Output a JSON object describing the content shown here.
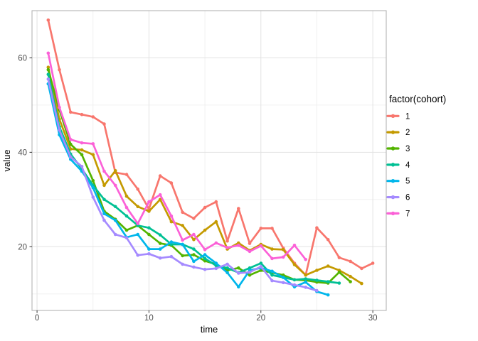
{
  "figure": {
    "background": "#ffffff",
    "panel_border_color": "#acacac",
    "grid_major_color": "#e2e2e2",
    "grid_minor_color": "#f0f0f0",
    "tick_mark_color": "#333333",
    "tick_label_color": "#4d4d4d"
  },
  "chart_data": {
    "type": "line",
    "title": "",
    "xlabel": "time",
    "ylabel": "value",
    "legend_title": "factor(cohort)",
    "legend_position": "right",
    "grid": "on",
    "x_ticks": [
      0,
      10,
      20,
      30
    ],
    "x_minor_ticks": [
      5,
      15,
      25
    ],
    "y_ticks": [
      20,
      40,
      60
    ],
    "y_minor_ticks": [
      10,
      30,
      50
    ],
    "xlim": [
      -0.45,
      31.2
    ],
    "ylim": [
      6.5,
      70
    ],
    "x_step": 1,
    "series": [
      {
        "name": "1",
        "cohort": 1,
        "color": "#F8766D",
        "x_start": 1,
        "values": [
          68,
          57.5,
          48.5,
          48,
          47.5,
          46,
          35.7,
          35.3,
          32.2,
          28,
          35,
          33.5,
          27.3,
          26,
          28.3,
          29.5,
          21.2,
          28.1,
          20.7,
          23.9,
          23.9,
          19.7,
          16.5,
          14,
          24,
          21.5,
          17.7,
          16.9,
          15.4,
          16.5
        ]
      },
      {
        "name": "2",
        "cohort": 2,
        "color": "#C49A00",
        "x_start": 1,
        "values": [
          58,
          47,
          40.7,
          40.5,
          39.5,
          33,
          36.1,
          30.7,
          28.5,
          27.5,
          30,
          25.3,
          24.5,
          21.5,
          23.5,
          25.3,
          19.5,
          20.8,
          19.2,
          20.5,
          19.5,
          19.4,
          16.2,
          14,
          15,
          15.9,
          15,
          13.7,
          12.2
        ]
      },
      {
        "name": "3",
        "cohort": 3,
        "color": "#53B400",
        "x_start": 1,
        "values": [
          57.5,
          49,
          41.7,
          39.5,
          34,
          27.5,
          25.8,
          23.5,
          24.5,
          22.6,
          20.7,
          20.3,
          18.1,
          18.3,
          17,
          16.3,
          15,
          15.5,
          14,
          15,
          14.5,
          14,
          13,
          12.9,
          12.5,
          12.3,
          14.6,
          12.6
        ]
      },
      {
        "name": "4",
        "cohort": 4,
        "color": "#00C094",
        "x_start": 1,
        "values": [
          56.5,
          45.4,
          39.6,
          36.5,
          33,
          30,
          28.5,
          26.5,
          24.5,
          24,
          22.5,
          20.5,
          20.5,
          19.5,
          17.5,
          16,
          15.5,
          14.5,
          15.5,
          16.5,
          14,
          13.5,
          13,
          13.2,
          12.9,
          12.6,
          12.3
        ]
      },
      {
        "name": "5",
        "cohort": 5,
        "color": "#00B6EB",
        "x_start": 1,
        "values": [
          54.5,
          43.7,
          38.5,
          36,
          32.5,
          27,
          25.6,
          22,
          22.6,
          19.5,
          19.5,
          21,
          20.5,
          16.9,
          18.3,
          16.5,
          14.5,
          11.5,
          15,
          15.5,
          14.8,
          13.5,
          11.5,
          12.5,
          10.5,
          9.8
        ]
      },
      {
        "name": "6",
        "cohort": 6,
        "color": "#A58AFF",
        "x_start": 1,
        "values": [
          55.5,
          44.7,
          39,
          37,
          30.5,
          25.6,
          22.6,
          21.9,
          18.2,
          18.5,
          17.6,
          17.9,
          16.3,
          15.7,
          15.2,
          15.4,
          16.3,
          14.4,
          14.6,
          15.8,
          12.8,
          12.4,
          11.9,
          11.4,
          10.7
        ]
      },
      {
        "name": "7",
        "cohort": 7,
        "color": "#FB61D7",
        "x_start": 1,
        "values": [
          61,
          49.5,
          42.7,
          42,
          41.8,
          36,
          33,
          28.3,
          24.9,
          29.5,
          31,
          26.5,
          21.4,
          22.6,
          19.4,
          20.8,
          19.8,
          20.3,
          19,
          20.2,
          17.5,
          17.8,
          20.3,
          17.3
        ]
      }
    ]
  }
}
